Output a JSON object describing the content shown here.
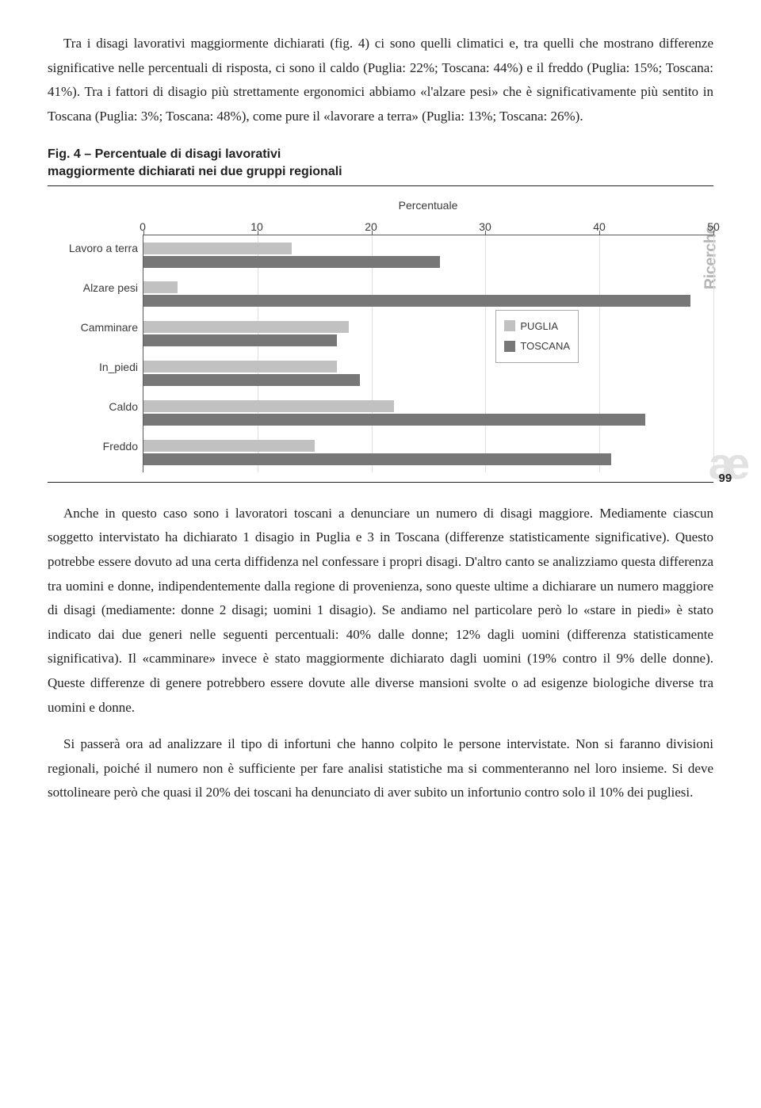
{
  "para1": "Tra i disagi lavorativi maggiormente dichiarati (fig. 4) ci sono quelli climatici e, tra quelli che mostrano differenze significative nelle percentuali di risposta, ci sono il caldo (Puglia: 22%; Toscana: 44%) e il freddo (Puglia: 15%; Toscana: 41%). Tra i fattori di disagio più strettamente ergonomici abbiamo «l'alzare pesi» che è significativamente più sentito in Toscana (Puglia: 3%; Toscana: 48%), come pure il «lavorare a terra» (Puglia: 13%; Toscana: 26%).",
  "figCaptionLine1": "Fig. 4 – Percentuale di disagi lavorativi",
  "figCaptionLine2": "maggiormente dichiarati nei due gruppi regionali",
  "chart": {
    "axisTitle": "Percentuale",
    "xlim": [
      0,
      50
    ],
    "ticks": [
      0,
      10,
      20,
      30,
      40,
      50
    ],
    "categories": [
      "Lavoro a terra",
      "Alzare pesi",
      "Camminare",
      "In_piedi",
      "Caldo",
      "Freddo"
    ],
    "series": [
      {
        "name": "PUGLIA",
        "color": "#c1c1c1",
        "values": [
          13,
          3,
          18,
          17,
          22,
          15
        ]
      },
      {
        "name": "TOSCANA",
        "color": "#777777",
        "values": [
          26,
          48,
          17,
          19,
          44,
          41
        ]
      }
    ],
    "bgColor": "#ffffff",
    "gridColor": "#e0e0e0",
    "axisColor": "#5a5a5a",
    "labelFont": "Arial",
    "labelSize": 14
  },
  "sideLabel": "Ricerche",
  "pageDecor": "ae",
  "pageNum": "99",
  "para2": "Anche in questo caso sono i lavoratori toscani a denunciare un numero di disagi maggiore. Mediamente ciascun soggetto intervistato ha dichiarato 1 disagio in Puglia e 3 in Toscana (differenze statisticamente significative). Questo potrebbe essere dovuto ad una certa diffidenza nel confessare i propri disagi. D'altro canto se analizziamo questa differenza tra uomini e donne, indipendentemente dalla regione di provenienza, sono queste ultime a dichiarare un numero maggiore di disagi (mediamente: donne 2 disagi; uomini 1 disagio). Se andiamo nel particolare però lo «stare in piedi» è stato indicato dai due generi nelle seguenti percentuali: 40% dalle donne; 12% dagli uomini (differenza statisticamente significativa). Il «camminare» invece è stato maggiormente dichiarato dagli uomini (19% contro il 9% delle donne). Queste differenze di genere potrebbero essere dovute alle diverse mansioni svolte o ad esigenze biologiche diverse tra uomini e donne.",
  "para3": "Si passerà ora ad analizzare il tipo di infortuni che hanno colpito le persone intervistate. Non si faranno divisioni regionali, poiché il numero non è sufficiente per fare analisi statistiche ma si commenteranno nel loro insieme. Si deve sottolineare però che quasi il 20% dei toscani ha denunciato di aver subito un infortunio contro solo il 10% dei pugliesi."
}
